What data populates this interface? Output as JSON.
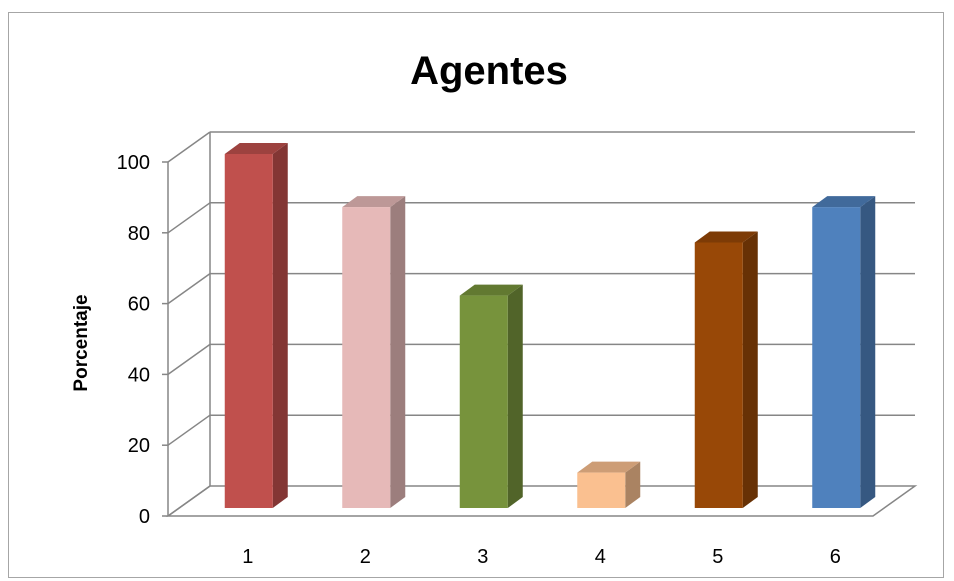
{
  "chart_data": {
    "type": "bar",
    "title": "Agentes",
    "xlabel": "",
    "ylabel": "Porcentaje",
    "categories": [
      "1",
      "2",
      "3",
      "4",
      "5",
      "6"
    ],
    "values": [
      100,
      85,
      60,
      10,
      75,
      85
    ],
    "ylim": [
      0,
      100
    ],
    "yticks": [
      "0",
      "20",
      "40",
      "60",
      "80",
      "100"
    ],
    "grid": true,
    "legend": "none",
    "style": "3d-column",
    "colors": [
      "#c0504d",
      "#e6b9b8",
      "#77933c",
      "#fac090",
      "#984807",
      "#4f81bd"
    ]
  }
}
